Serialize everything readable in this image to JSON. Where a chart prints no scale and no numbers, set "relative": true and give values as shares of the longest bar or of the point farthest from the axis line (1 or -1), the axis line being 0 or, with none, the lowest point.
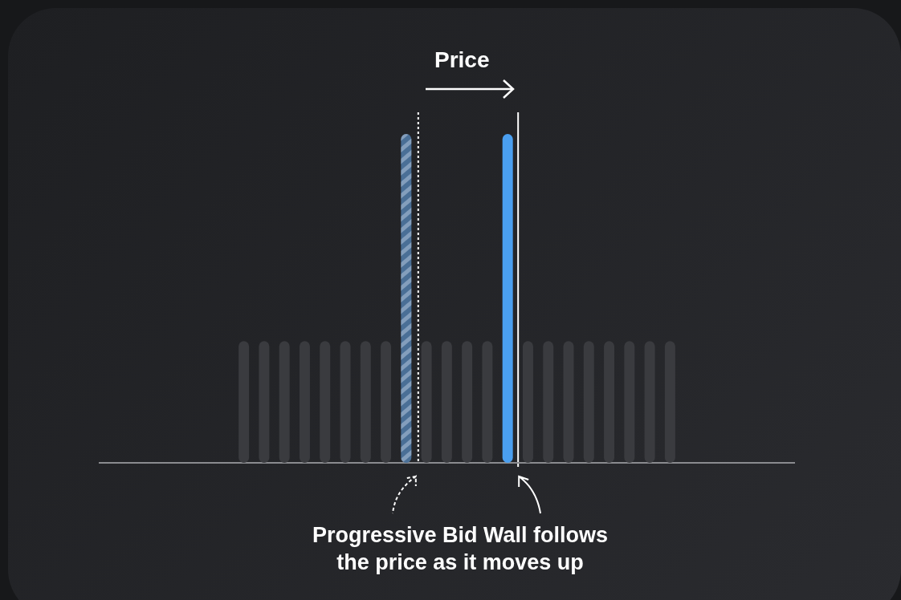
{
  "chart_data": {
    "type": "bar",
    "relative": true,
    "categories": [
      null,
      null,
      null,
      null,
      null,
      null,
      null,
      null,
      null,
      null,
      null,
      null,
      null,
      null,
      null,
      null,
      null,
      null,
      null,
      null,
      null,
      null
    ],
    "values": [
      0.37,
      0.37,
      0.37,
      0.37,
      0.37,
      0.37,
      0.37,
      0.37,
      1,
      0.37,
      0.37,
      0.37,
      0.37,
      1,
      0.37,
      0.37,
      0.37,
      0.37,
      0.37,
      0.37,
      0.37,
      0.37
    ],
    "colors": [
      "#3a3b3f",
      "#3a3b3f",
      "#3a3b3f",
      "#3a3b3f",
      "#3a3b3f",
      "#3a3b3f",
      "#3a3b3f",
      "#3a3b3f",
      "#4a6f96",
      "#3a3b3f",
      "#3a3b3f",
      "#3a3b3f",
      "#3a3b3f",
      "#4a9ff0",
      "#3a3b3f",
      "#3a3b3f",
      "#3a3b3f",
      "#3a3b3f",
      "#3a3b3f",
      "#3a3b3f",
      "#3a3b3f",
      "#3a3b3f"
    ],
    "annotations": [
      "Price",
      "Progressive Bid Wall follows\nthe price as it moves up"
    ]
  }
}
